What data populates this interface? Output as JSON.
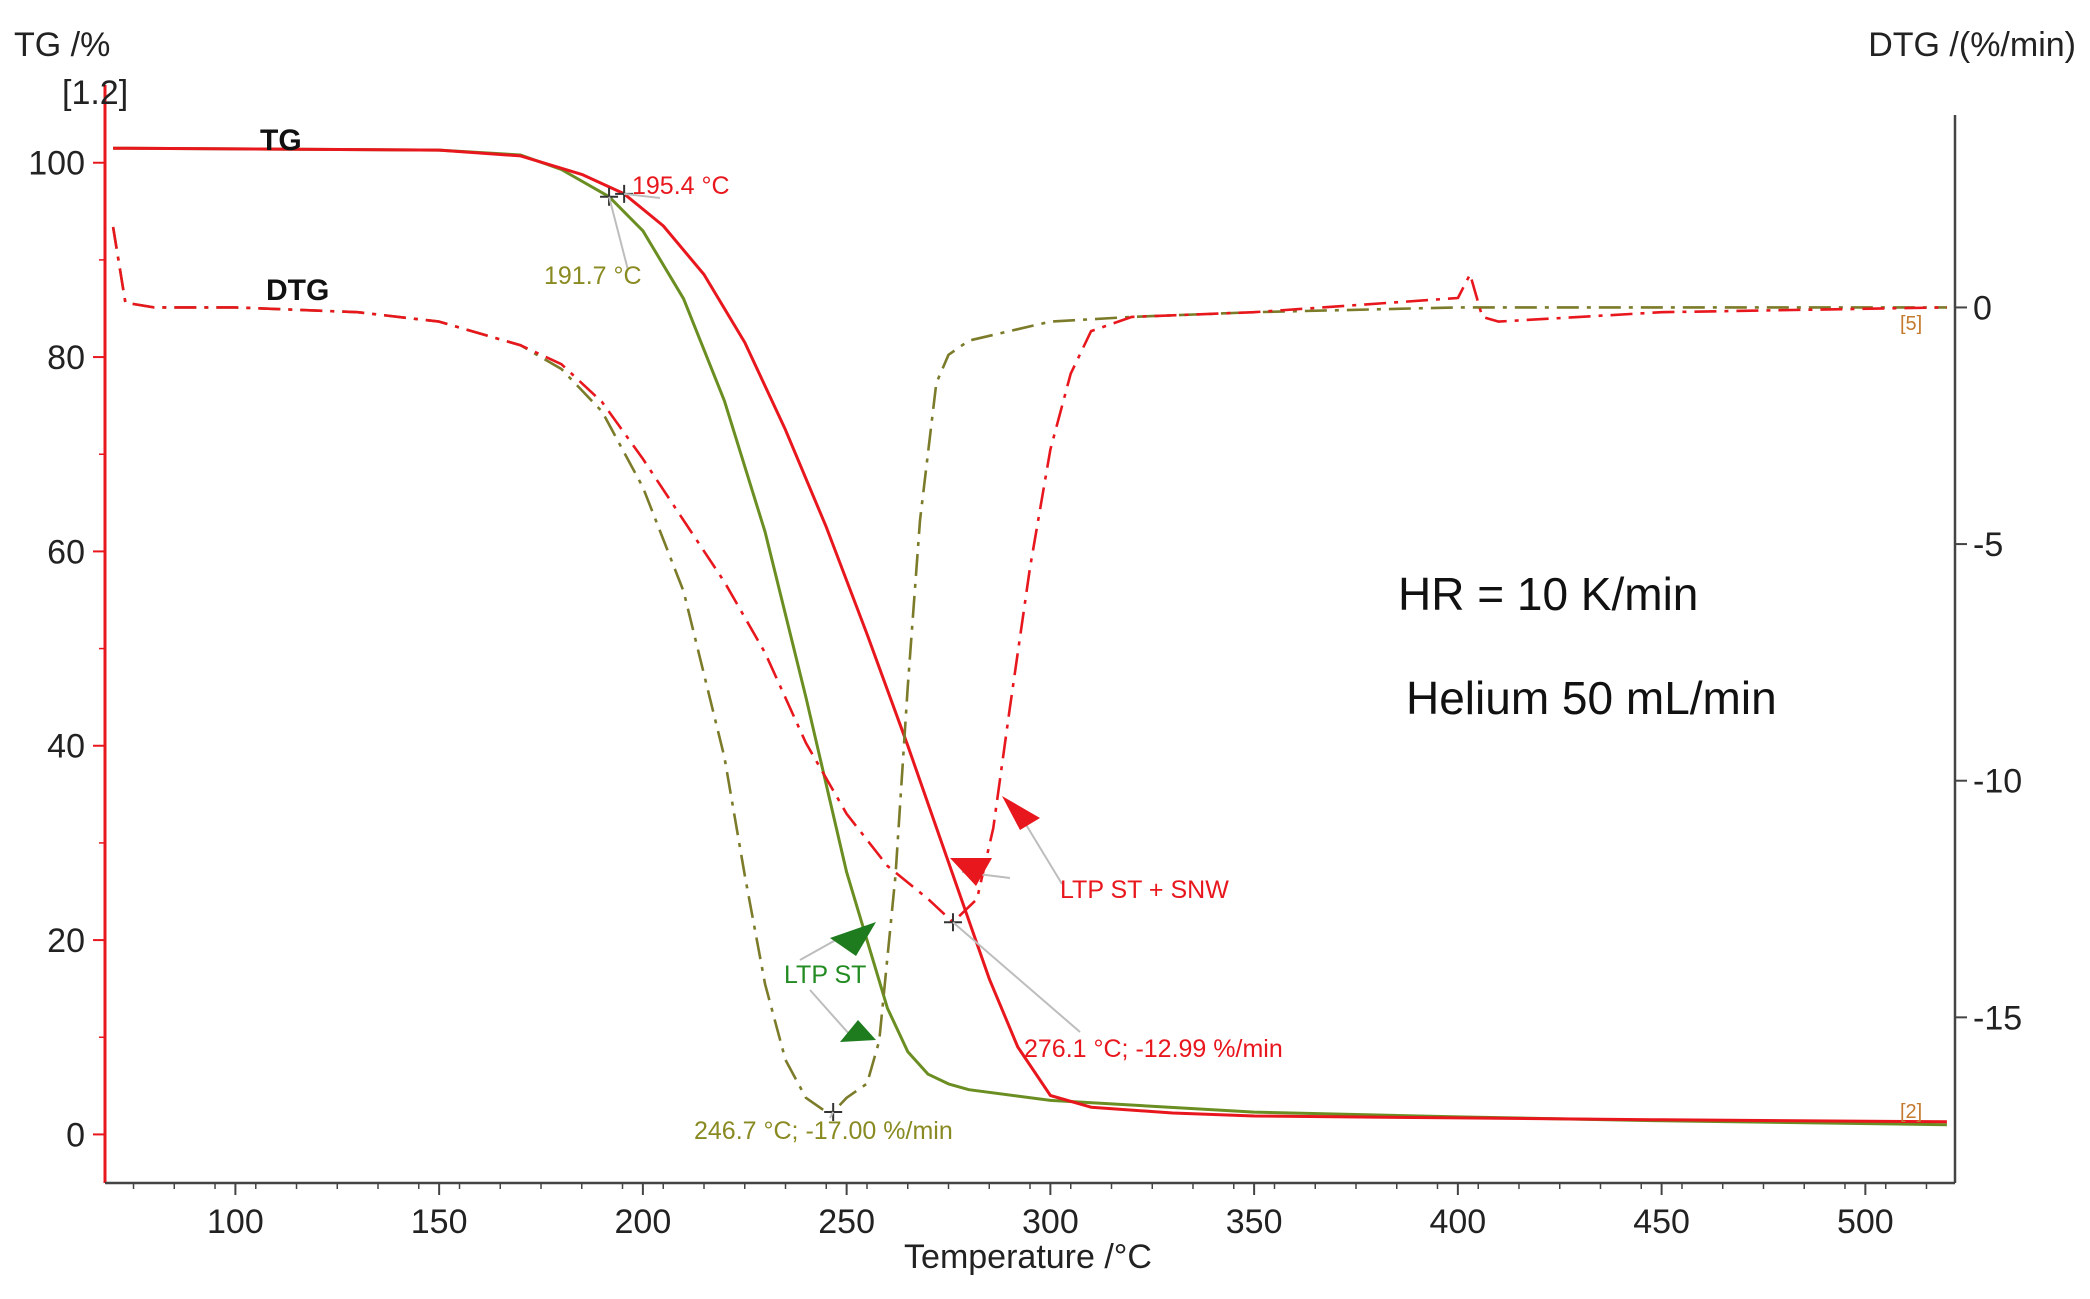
{
  "chart_data": {
    "type": "line",
    "title": "",
    "xlabel": "Temperature /°C",
    "ylabel_left": "TG /%",
    "ylabel_left_index": "[1.2]",
    "ylabel_right": "DTG /(%/min)",
    "xlim": [
      68,
      522
    ],
    "ylim_left": [
      -5,
      108
    ],
    "ylim_right": [
      -18.5,
      4.7
    ],
    "x_ticks": [
      100,
      150,
      200,
      250,
      300,
      350,
      400,
      450,
      500
    ],
    "y_left_ticks": [
      0,
      20,
      40,
      60,
      80,
      100
    ],
    "y_right_ticks": [
      0,
      -5,
      -10,
      -15
    ],
    "grid": false,
    "curve_labels": {
      "tg": "TG",
      "dtg": "DTG"
    },
    "series": [
      {
        "key": "tg_ltp_st",
        "curve": "TG",
        "axis": "left",
        "color": "#6b8e23",
        "style": "solid",
        "x": [
          70,
          150,
          170,
          180,
          191.7,
          200,
          210,
          220,
          230,
          240,
          250,
          260,
          265,
          270,
          275,
          280,
          300,
          350,
          400,
          450,
          520
        ],
        "y": [
          101.5,
          101.3,
          100.8,
          99.3,
          96.5,
          93.0,
          86.0,
          75.5,
          62.0,
          45.0,
          27.0,
          13.0,
          8.5,
          6.2,
          5.2,
          4.6,
          3.5,
          2.3,
          1.8,
          1.4,
          1.0
        ]
      },
      {
        "key": "tg_ltp_st_snw",
        "curve": "TG",
        "axis": "left",
        "color": "#e8171d",
        "style": "solid",
        "x": [
          70,
          150,
          170,
          185,
          195.4,
          205,
          215,
          225,
          235,
          245,
          255,
          265,
          275,
          285,
          292,
          300,
          310,
          330,
          350,
          400,
          450,
          520
        ],
        "y": [
          101.5,
          101.3,
          100.7,
          98.8,
          96.8,
          93.5,
          88.5,
          81.5,
          72.5,
          62.5,
          51.5,
          40.0,
          28.0,
          16.0,
          9.0,
          4.0,
          2.8,
          2.2,
          1.9,
          1.7,
          1.5,
          1.3
        ]
      },
      {
        "key": "dtg_ltp_st",
        "curve": "DTG",
        "axis": "right",
        "color": "#7b7b2a",
        "style": "dashdot",
        "x": [
          70,
          73,
          80,
          100,
          130,
          150,
          170,
          180,
          190,
          200,
          210,
          220,
          225,
          230,
          235,
          240,
          245,
          246.7,
          250,
          255,
          258,
          262,
          265,
          268,
          272,
          275,
          280,
          290,
          300,
          320,
          350,
          400,
          450,
          520
        ],
        "y": [
          1.7,
          0.1,
          0.0,
          0.0,
          -0.1,
          -0.3,
          -0.8,
          -1.3,
          -2.2,
          -3.8,
          -6.0,
          -9.5,
          -12.0,
          -14.3,
          -15.9,
          -16.7,
          -17.0,
          -17.0,
          -16.7,
          -16.4,
          -15.5,
          -12.0,
          -8.0,
          -4.5,
          -1.6,
          -1.0,
          -0.7,
          -0.5,
          -0.3,
          -0.2,
          -0.1,
          0.0,
          0.0,
          0.0
        ]
      },
      {
        "key": "dtg_ltp_st_snw",
        "curve": "DTG",
        "axis": "right",
        "color": "#e8171d",
        "style": "dashdot",
        "x": [
          70,
          73,
          80,
          100,
          130,
          150,
          170,
          180,
          190,
          200,
          210,
          220,
          230,
          240,
          250,
          260,
          270,
          276.1,
          282,
          286,
          290,
          295,
          300,
          305,
          310,
          320,
          350,
          400,
          403,
          406,
          410,
          450,
          520
        ],
        "y": [
          1.7,
          0.1,
          0.0,
          0.0,
          -0.1,
          -0.3,
          -0.8,
          -1.2,
          -2.0,
          -3.2,
          -4.5,
          -5.8,
          -7.3,
          -9.2,
          -10.7,
          -11.8,
          -12.5,
          -12.99,
          -12.5,
          -11.0,
          -8.5,
          -5.5,
          -3.0,
          -1.4,
          -0.5,
          -0.2,
          -0.1,
          0.2,
          0.7,
          -0.2,
          -0.3,
          -0.1,
          0.0
        ]
      }
    ],
    "annotations": [
      {
        "key": "onset_snw",
        "text": "195.4 °C",
        "color": "#e8171d",
        "x": 195.4,
        "y_left": 96.8
      },
      {
        "key": "onset_st",
        "text": "191.7 °C",
        "color": "#8a8a22",
        "x": 191.7,
        "y_left": 96.5
      },
      {
        "key": "peak_snw",
        "text": "276.1 °C; -12.99 %/min",
        "color": "#e8171d",
        "x": 276.1,
        "y_right": -12.99
      },
      {
        "key": "peak_st",
        "text": "246.7 °C; -17.00 %/min",
        "color": "#8a8a22",
        "x": 246.7,
        "y_right": -17.0
      }
    ],
    "series_labels": [
      {
        "key": "ltp_st",
        "text": "LTP ST",
        "color": "#228b22"
      },
      {
        "key": "ltp_st_snw",
        "text": "LTP ST + SNW",
        "color": "#e8171d"
      }
    ],
    "curve_end_labels": [
      "[5]",
      "[2]"
    ],
    "notes": [
      "HR = 10 K/min",
      "Helium 50 mL/min"
    ]
  }
}
